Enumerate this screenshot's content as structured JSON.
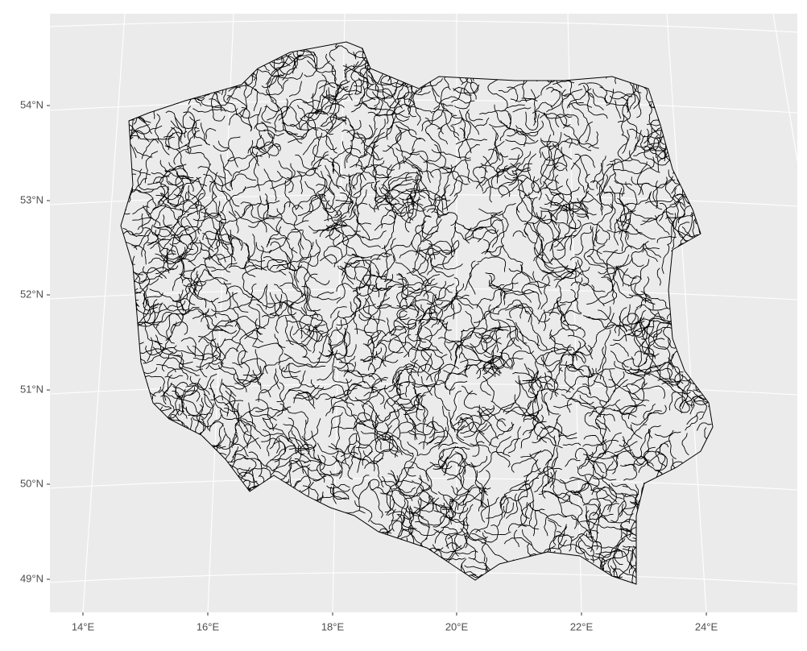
{
  "map": {
    "lat_labels": [
      "54°N",
      "53°N",
      "52°N",
      "51°N",
      "50°N",
      "49°N"
    ],
    "lon_labels": [
      "14°E",
      "16°E",
      "18°E",
      "20°E",
      "22°E",
      "24°E"
    ]
  }
}
